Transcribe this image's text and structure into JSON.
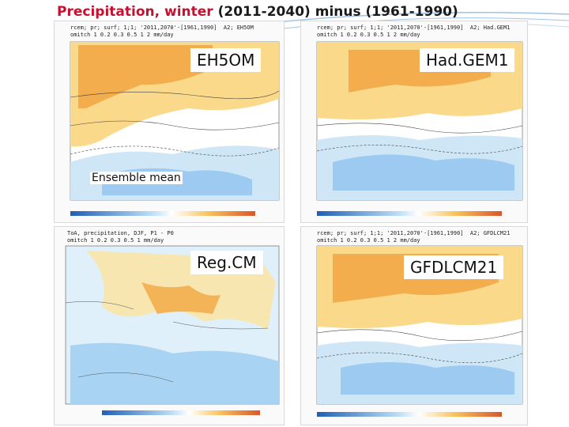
{
  "title": {
    "part1": "Precipitation, winter",
    "part2": " (2011-2040) minus (1961-1990)"
  },
  "panels": [
    {
      "label": "EH5OM",
      "caption": "rcem; pr; surf; 1;1; '2011,2070'-[1961,1990]  A2; EH5OM\nomitch 1 0.2 0.3 0.5 1 2 mm/day"
    },
    {
      "label": "Had.GEM1",
      "caption": "rcem; pr; surf; 1;1; '2011,2070'-[1961,1990]  A2; Had.GEM1\nomitch 1 0.2 0.3 0.5 1 2 mm/day"
    },
    {
      "label": "Reg.CM",
      "caption": "ToA, precipitation, DJF, P1 - P0\nomitch 1 0.2 0.3 0.5 1 mm/day"
    },
    {
      "label": "GFDLCM21",
      "caption": "rcem; pr; surf; 1;1; '2011,2070'-[1961,1990]  A2; GFDLCM21\nomitch 1 0.2 0.3 0.5 1 2 mm/day"
    }
  ],
  "ensemble_label": "Ensemble mean",
  "colors": {
    "title_highlight": "#c8102e",
    "title_dark": "#1a1a1a",
    "wet_increase": "#f2a73b",
    "dry_decrease": "#4a90d9"
  }
}
